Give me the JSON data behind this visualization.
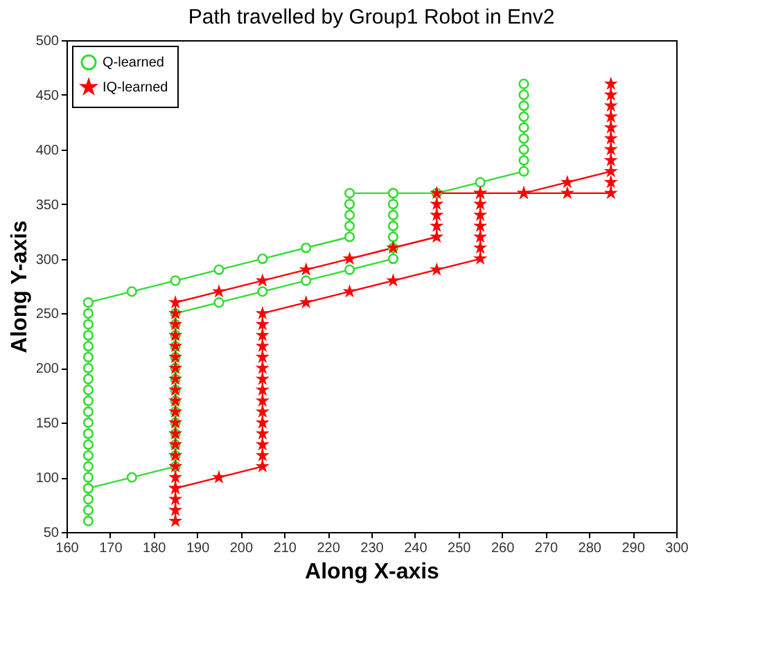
{
  "chart_data": {
    "type": "line",
    "title": "Path travelled by Group1 Robot in Env2",
    "xlabel": "Along X-axis",
    "ylabel": "Along Y-axis",
    "xlim": [
      160,
      300
    ],
    "xticks": [
      160,
      170,
      180,
      190,
      200,
      210,
      220,
      230,
      240,
      250,
      260,
      270,
      280,
      290,
      300
    ],
    "ylim": [
      50,
      500
    ],
    "yticks": [
      50,
      100,
      150,
      200,
      250,
      300,
      350,
      400,
      450,
      500
    ],
    "legend": "top left",
    "grid": false,
    "line_style": "solid",
    "series": [
      {
        "name": "Q-learned",
        "color": "#33dd33",
        "marker": "circle",
        "x": [
          165,
          165,
          165,
          165,
          165,
          165,
          165,
          165,
          165,
          165,
          165,
          165,
          165,
          165,
          165,
          165,
          165,
          165,
          165,
          165,
          165,
          175,
          185,
          195,
          205,
          215,
          225,
          225,
          225,
          225,
          225,
          235,
          245,
          255,
          265,
          265,
          265,
          265,
          265,
          265,
          265,
          265,
          265,
          null,
          165,
          175,
          185,
          185,
          185,
          185,
          185,
          185,
          185,
          185,
          185,
          185,
          185,
          185,
          185,
          185,
          185,
          195,
          205,
          215,
          225,
          235,
          235,
          235,
          235,
          235,
          235,
          235
        ],
        "values": [
          60,
          70,
          80,
          90,
          100,
          110,
          120,
          130,
          140,
          150,
          160,
          170,
          180,
          190,
          200,
          210,
          220,
          230,
          240,
          250,
          260,
          270,
          280,
          290,
          300,
          310,
          320,
          330,
          340,
          350,
          360,
          360,
          360,
          370,
          380,
          390,
          400,
          410,
          420,
          430,
          440,
          450,
          460,
          null,
          90,
          100,
          110,
          120,
          130,
          140,
          150,
          160,
          170,
          180,
          190,
          200,
          210,
          220,
          230,
          240,
          250,
          260,
          270,
          280,
          290,
          300,
          310,
          320,
          330,
          340,
          350,
          360
        ]
      },
      {
        "name": "IQ-learned",
        "color": "#ff0000",
        "marker": "star",
        "x": [
          185,
          185,
          185,
          185,
          185,
          185,
          185,
          185,
          185,
          185,
          185,
          185,
          185,
          185,
          185,
          185,
          185,
          185,
          185,
          185,
          185,
          195,
          205,
          215,
          225,
          235,
          245,
          245,
          245,
          245,
          245,
          255,
          265,
          275,
          285,
          285,
          285,
          285,
          285,
          285,
          285,
          285,
          285,
          null,
          185,
          195,
          205,
          205,
          205,
          205,
          205,
          205,
          205,
          205,
          205,
          205,
          205,
          205,
          205,
          205,
          205,
          215,
          225,
          235,
          245,
          255,
          255,
          255,
          255,
          255,
          255,
          255,
          265,
          275,
          285,
          285
        ],
        "values": [
          60,
          70,
          80,
          90,
          100,
          110,
          120,
          130,
          140,
          150,
          160,
          170,
          180,
          190,
          200,
          210,
          220,
          230,
          240,
          250,
          260,
          270,
          280,
          290,
          300,
          310,
          320,
          330,
          340,
          350,
          360,
          360,
          360,
          370,
          380,
          390,
          400,
          410,
          420,
          430,
          440,
          450,
          460,
          null,
          90,
          100,
          110,
          120,
          130,
          140,
          150,
          160,
          170,
          180,
          190,
          200,
          210,
          220,
          230,
          240,
          250,
          260,
          270,
          280,
          290,
          300,
          310,
          320,
          330,
          340,
          350,
          360,
          360,
          360,
          360,
          370
        ]
      }
    ]
  }
}
